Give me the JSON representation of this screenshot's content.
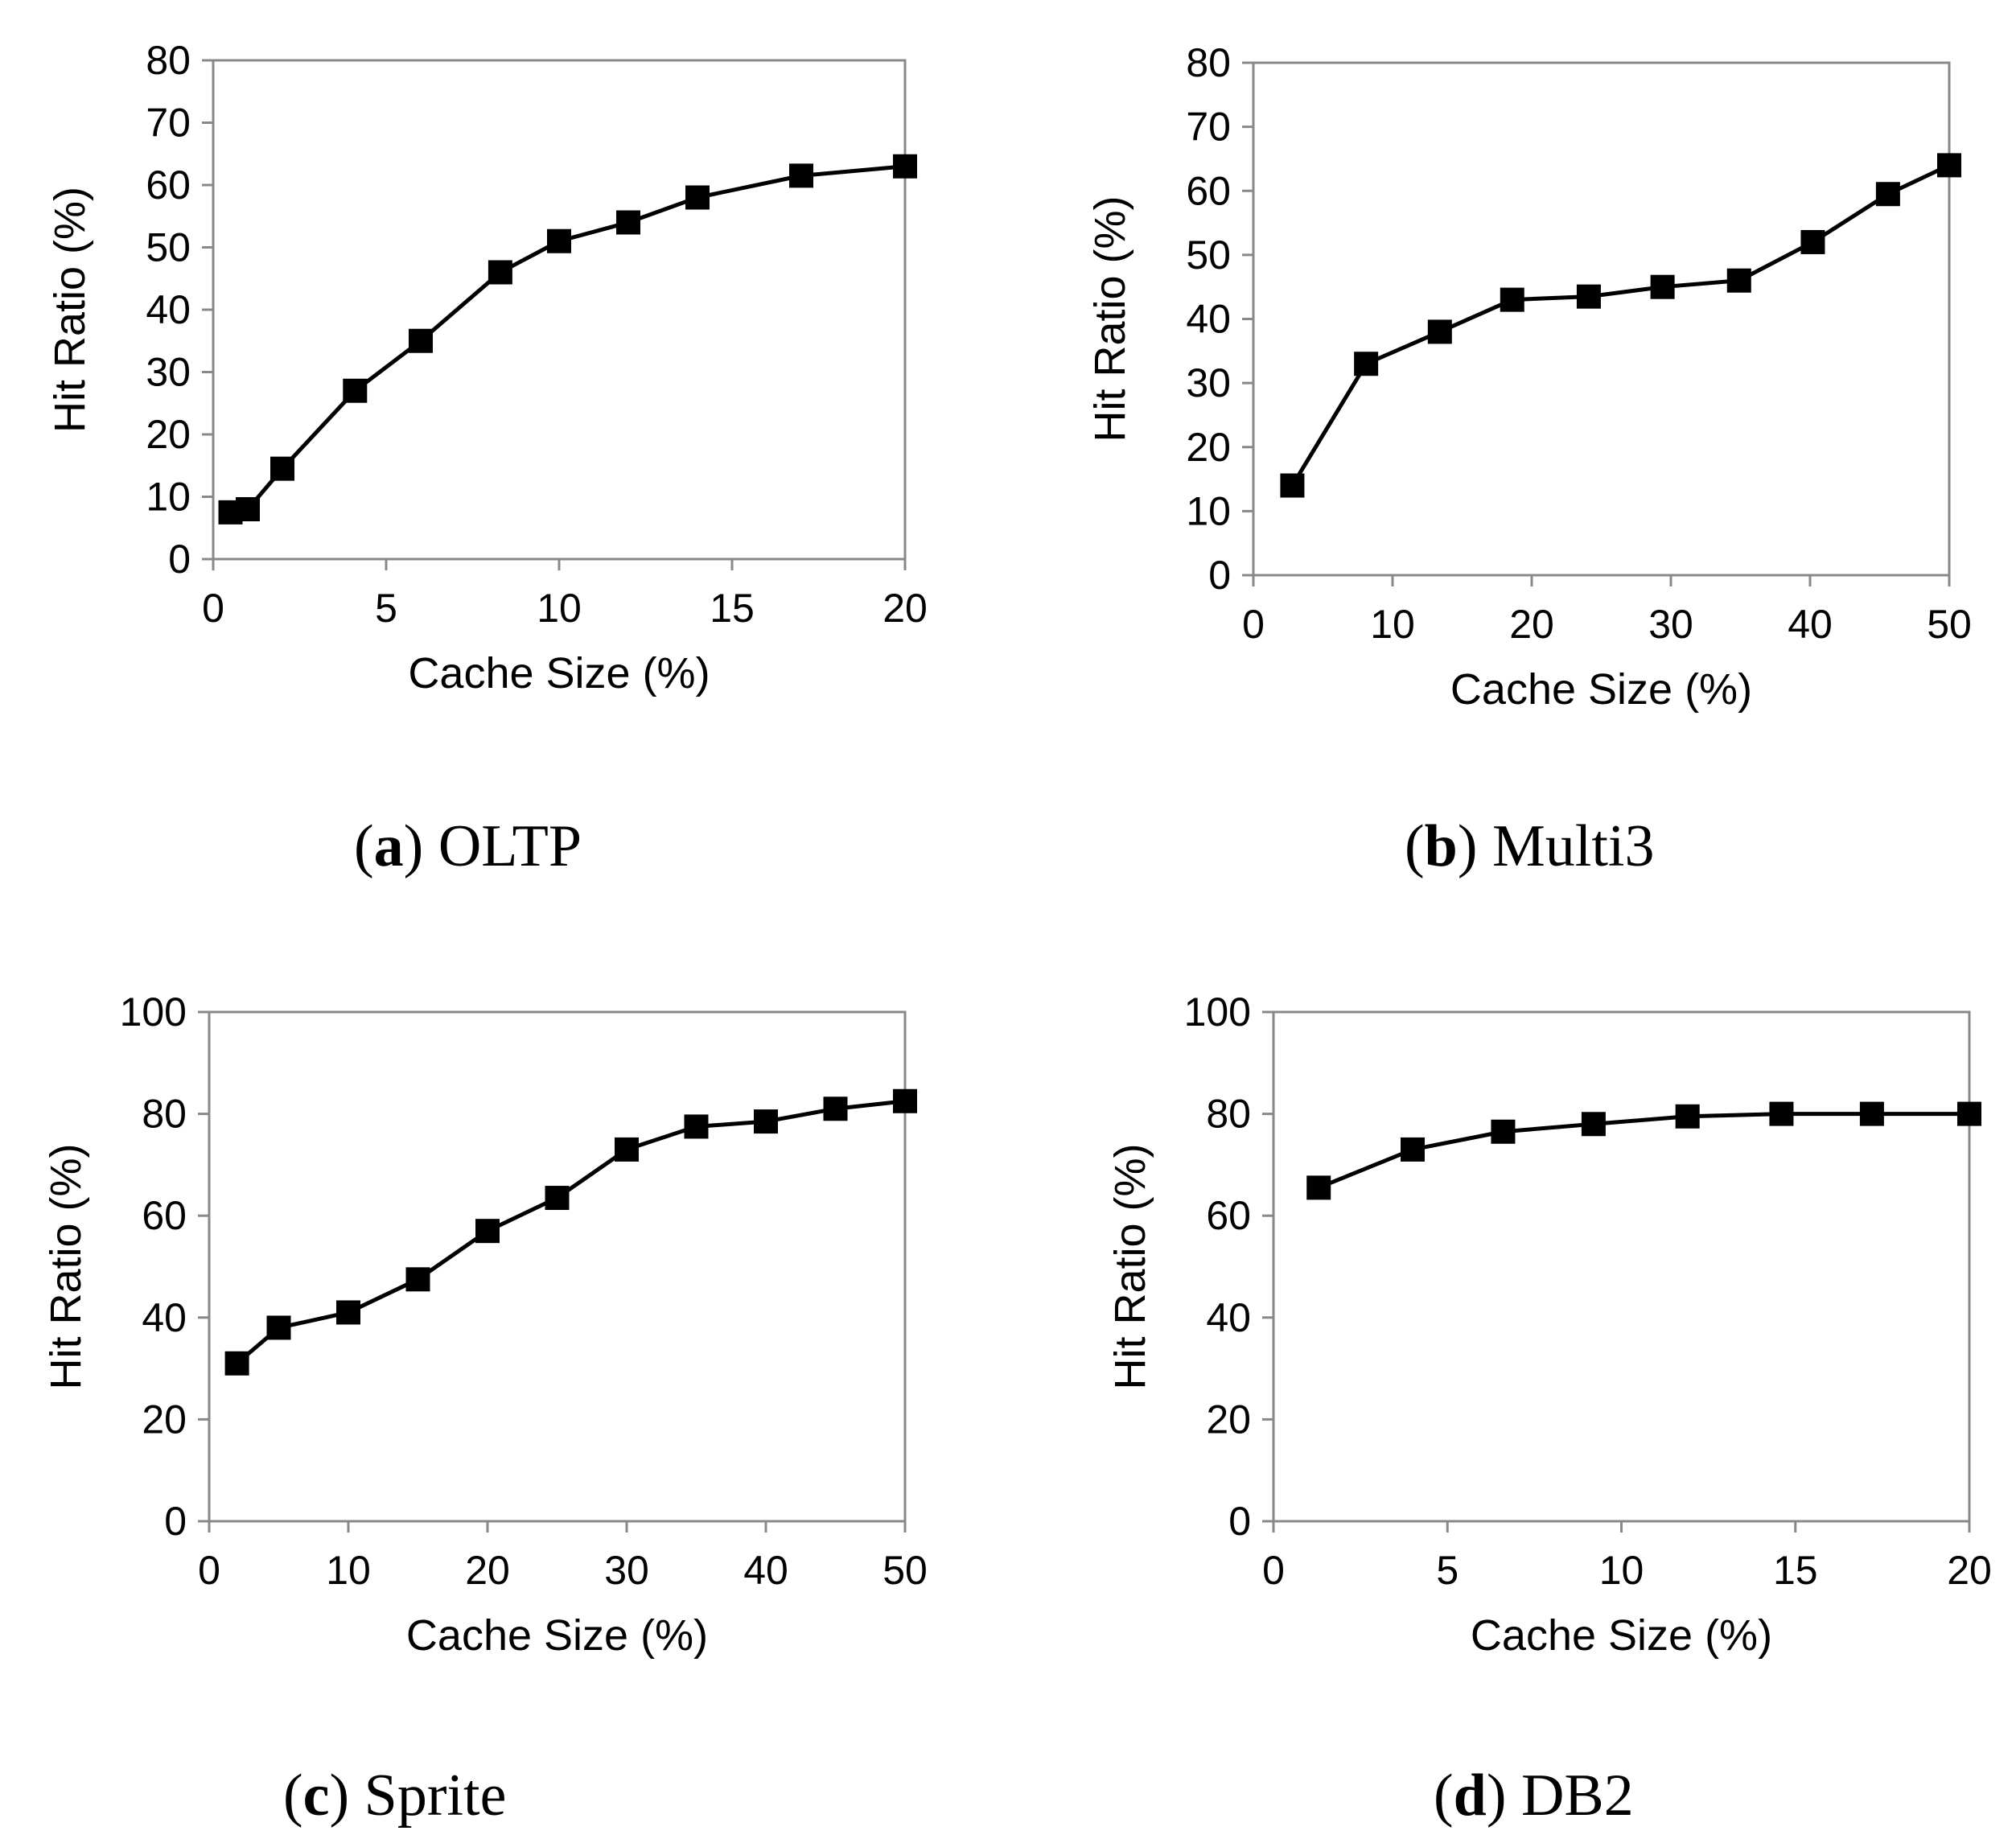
{
  "chart_data": [
    {
      "type": "line",
      "caption_letter": "a",
      "caption_text": "OLTP",
      "xlabel": "Cache Size (%)",
      "ylabel": "Hit Ratio (%)",
      "xlim": [
        0,
        20
      ],
      "ylim": [
        0,
        80
      ],
      "xticks": [
        0,
        5,
        10,
        15,
        20
      ],
      "yticks": [
        0,
        10,
        20,
        30,
        40,
        50,
        60,
        70,
        80
      ],
      "grid": false,
      "marker": "square",
      "line_color": "#000000",
      "series": [
        {
          "x": [
            0.5,
            1,
            2,
            4.1,
            6,
            8.3,
            10,
            12,
            14,
            17,
            20
          ],
          "y": [
            7.5,
            8,
            14.5,
            27,
            35,
            46,
            51,
            54,
            58,
            61.5,
            63
          ]
        }
      ]
    },
    {
      "type": "line",
      "caption_letter": "b",
      "caption_text": "Multi3",
      "xlabel": "Cache Size (%)",
      "ylabel": "Hit Ratio (%)",
      "xlim": [
        0,
        50
      ],
      "ylim": [
        0,
        80
      ],
      "xticks": [
        0,
        10,
        20,
        30,
        40,
        50
      ],
      "yticks": [
        0,
        10,
        20,
        30,
        40,
        50,
        60,
        70,
        80
      ],
      "grid": false,
      "marker": "square",
      "line_color": "#000000",
      "series": [
        {
          "x": [
            2.8,
            8.1,
            13.4,
            18.6,
            24.1,
            29.4,
            34.9,
            40.2,
            45.6,
            50
          ],
          "y": [
            14,
            33,
            38,
            43,
            43.5,
            45,
            46,
            52,
            59.5,
            64
          ]
        }
      ]
    },
    {
      "type": "line",
      "caption_letter": "c",
      "caption_text": "Sprite",
      "xlabel": "Cache Size (%)",
      "ylabel": "Hit Ratio (%)",
      "xlim": [
        0,
        50
      ],
      "ylim": [
        0,
        100
      ],
      "xticks": [
        0,
        10,
        20,
        30,
        40,
        50
      ],
      "yticks": [
        0,
        20,
        40,
        60,
        80,
        100
      ],
      "grid": false,
      "marker": "square",
      "line_color": "#000000",
      "series": [
        {
          "x": [
            2,
            5,
            10,
            15,
            20,
            25,
            30,
            35,
            40,
            45,
            50
          ],
          "y": [
            31,
            38,
            41,
            47.5,
            57,
            63.5,
            73,
            77.5,
            78.5,
            81,
            82.5
          ]
        }
      ]
    },
    {
      "type": "line",
      "caption_letter": "d",
      "caption_text": "DB2",
      "xlabel": "Cache Size (%)",
      "ylabel": "Hit Ratio (%)",
      "xlim": [
        0,
        20
      ],
      "ylim": [
        0,
        100
      ],
      "xticks": [
        0,
        5,
        10,
        15,
        20
      ],
      "yticks": [
        0,
        20,
        40,
        60,
        80,
        100
      ],
      "grid": false,
      "marker": "square",
      "line_color": "#000000",
      "series": [
        {
          "x": [
            1.3,
            4,
            6.6,
            9.2,
            11.9,
            14.6,
            17.2,
            20
          ],
          "y": [
            65.5,
            73,
            76.5,
            78,
            79.5,
            80,
            80,
            80
          ]
        }
      ]
    }
  ]
}
